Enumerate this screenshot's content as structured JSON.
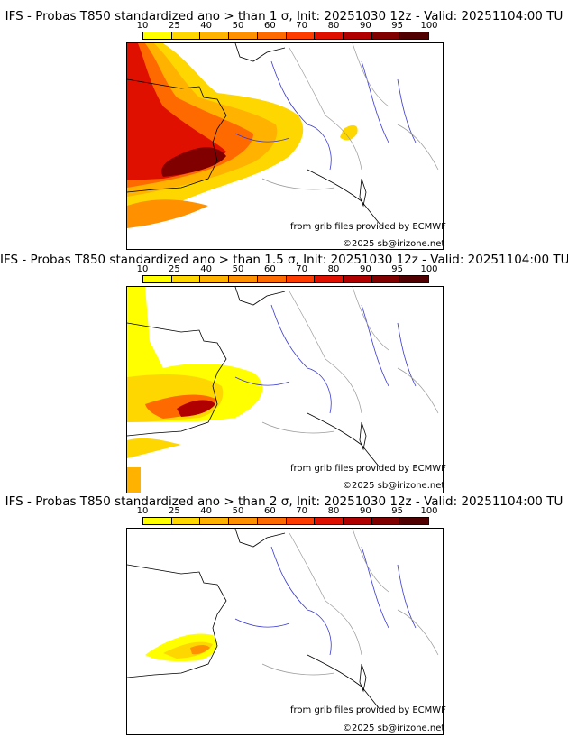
{
  "colorbar": {
    "labels": [
      "10",
      "25",
      "40",
      "50",
      "60",
      "70",
      "80",
      "90",
      "95",
      "100"
    ],
    "colors": [
      "#ffff00",
      "#ffd700",
      "#ffb300",
      "#ff9000",
      "#ff6a00",
      "#ff3c00",
      "#e01000",
      "#b00000",
      "#800000",
      "#500000"
    ]
  },
  "panels": [
    {
      "title": "IFS - Probas T850  standardized ano > than 1 σ, Init: 20251030 12z - Valid: 20251104:00 TU"
    },
    {
      "title": "IFS - Probas T850  standardized ano > than 1.5 σ, Init: 20251030 12z - Valid: 20251104:00 TU"
    },
    {
      "title": "IFS - Probas T850  standardized ano > than 2 σ, Init: 20251030 12z - Valid: 20251104:00 TU"
    }
  ],
  "credits": {
    "source": "from grib files provided by ECMWF",
    "copyright": "©2025 sb@irizone.net"
  },
  "style": {
    "coast": "#000000",
    "rivers": "#3a3ad0",
    "borders": "#9a9a9a"
  }
}
